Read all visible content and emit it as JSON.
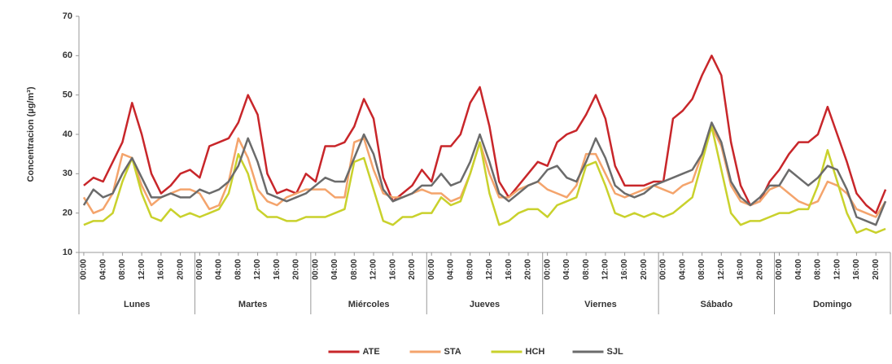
{
  "chart_data": {
    "type": "line",
    "y_label": "Concentracion (µg/m³)",
    "categories": [
      "00:00",
      null,
      "04:00",
      null,
      "08:00",
      null,
      "12:00",
      null,
      "16:00",
      null,
      "20:00",
      null,
      "00:00",
      null,
      "04:00",
      null,
      "08:00",
      null,
      "12:00",
      null,
      "16:00",
      null,
      "20:00",
      null,
      "00:00",
      null,
      "04:00",
      null,
      "08:00",
      null,
      "12:00",
      null,
      "16:00",
      null,
      "20:00",
      null,
      "00:00",
      null,
      "04:00",
      null,
      "08:00",
      null,
      "12:00",
      null,
      "16:00",
      null,
      "20:00",
      null,
      "00:00",
      null,
      "04:00",
      null,
      "08:00",
      null,
      "12:00",
      null,
      "16:00",
      null,
      "20:00",
      null,
      "00:00",
      null,
      "04:00",
      null,
      "08:00",
      null,
      "12:00",
      null,
      "16:00",
      null,
      "20:00",
      null,
      "00:00",
      null,
      "04:00",
      null,
      "08:00",
      null,
      "12:00",
      null,
      "16:00",
      null,
      "20:00",
      null
    ],
    "groups": [
      "Lunes",
      "Martes",
      "Miércoles",
      "Jueves",
      "Viernes",
      "Sábado",
      "Domingo"
    ],
    "series": [
      {
        "name": "ATE",
        "color": "#c8262a",
        "values": [
          27,
          29,
          28,
          33,
          38,
          48,
          40,
          30,
          25,
          27,
          30,
          31,
          29,
          37,
          38,
          39,
          43,
          50,
          45,
          30,
          25,
          26,
          25,
          30,
          28,
          37,
          37,
          38,
          42,
          49,
          44,
          29,
          23,
          25,
          27,
          31,
          28,
          37,
          37,
          40,
          48,
          52,
          42,
          28,
          24,
          27,
          30,
          33,
          32,
          38,
          40,
          41,
          45,
          50,
          44,
          32,
          27,
          27,
          27,
          28,
          28,
          44,
          46,
          49,
          55,
          60,
          55,
          38,
          27,
          22,
          23,
          28,
          31,
          35,
          38,
          38,
          40,
          47,
          40,
          33,
          25,
          22,
          20,
          26
        ]
      },
      {
        "name": "STA",
        "color": "#f4a46c",
        "values": [
          24,
          20,
          21,
          25,
          35,
          34,
          27,
          22,
          24,
          25,
          26,
          26,
          25,
          21,
          22,
          28,
          39,
          34,
          26,
          23,
          22,
          24,
          25,
          26,
          26,
          26,
          24,
          24,
          38,
          39,
          31,
          25,
          24,
          24,
          25,
          26,
          25,
          25,
          23,
          24,
          30,
          38,
          30,
          24,
          24,
          26,
          27,
          28,
          26,
          25,
          24,
          27,
          35,
          35,
          30,
          25,
          24,
          25,
          26,
          27,
          26,
          25,
          27,
          28,
          35,
          42,
          37,
          27,
          23,
          22,
          23,
          26,
          27,
          25,
          23,
          22,
          23,
          28,
          27,
          25,
          21,
          20,
          19,
          23
        ]
      },
      {
        "name": "HCH",
        "color": "#c9d12c",
        "values": [
          17,
          18,
          18,
          20,
          28,
          34,
          25,
          19,
          18,
          21,
          19,
          20,
          19,
          20,
          21,
          25,
          35,
          30,
          21,
          19,
          19,
          18,
          18,
          19,
          19,
          19,
          20,
          21,
          33,
          34,
          26,
          18,
          17,
          19,
          19,
          20,
          20,
          24,
          22,
          23,
          30,
          38,
          25,
          17,
          18,
          20,
          21,
          21,
          19,
          22,
          23,
          24,
          32,
          33,
          27,
          20,
          19,
          20,
          19,
          20,
          19,
          20,
          22,
          24,
          33,
          42,
          31,
          20,
          17,
          18,
          18,
          19,
          20,
          20,
          21,
          21,
          27,
          36,
          28,
          20,
          15,
          16,
          15,
          16
        ]
      },
      {
        "name": "SJL",
        "color": "#6b6b6b",
        "values": [
          22,
          26,
          24,
          25,
          30,
          34,
          29,
          24,
          24,
          25,
          24,
          24,
          26,
          25,
          26,
          28,
          32,
          39,
          33,
          25,
          24,
          23,
          24,
          25,
          27,
          29,
          28,
          28,
          34,
          40,
          35,
          26,
          23,
          24,
          25,
          27,
          27,
          30,
          27,
          28,
          33,
          40,
          33,
          25,
          23,
          25,
          27,
          28,
          31,
          32,
          29,
          28,
          33,
          39,
          34,
          27,
          25,
          24,
          25,
          27,
          28,
          29,
          30,
          31,
          35,
          43,
          38,
          28,
          24,
          22,
          24,
          27,
          27,
          31,
          29,
          27,
          29,
          32,
          31,
          26,
          19,
          18,
          17,
          23
        ]
      }
    ],
    "ylim": [
      10,
      70
    ],
    "yticks": [
      10,
      20,
      30,
      40,
      50,
      60,
      70
    ],
    "grid": false,
    "legend": "bottom"
  }
}
